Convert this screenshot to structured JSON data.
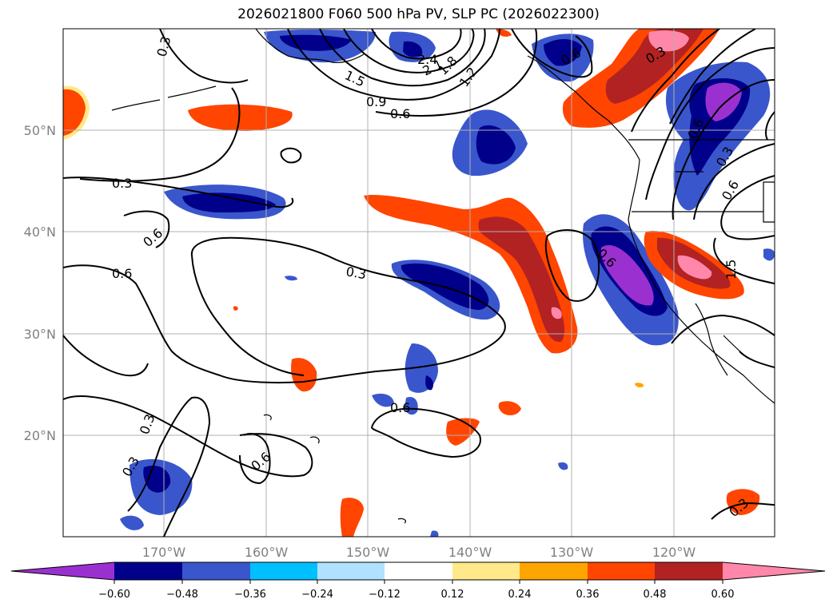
{
  "map": {
    "title": "2026021800 F060 500 hPa PV, SLP PC (2026022300)",
    "lat_ticks": [
      "20°N",
      "30°N",
      "40°N",
      "50°N"
    ],
    "lon_ticks": [
      "170°W",
      "160°W",
      "150°W",
      "140°W",
      "130°W",
      "120°W"
    ],
    "contour_labels": [
      "0.3",
      "0.3",
      "0.6",
      "0.6",
      "0.3",
      "0.6",
      "0.3",
      "0.6",
      "0.3",
      "1.5",
      "0.9",
      "0.6",
      "2.4",
      "2.1",
      "1.8",
      "1.2",
      "0.6",
      "0.3",
      "0.6",
      "0.6",
      "0.3",
      "0.6",
      "1.5",
      "0.3"
    ]
  },
  "colorbar": {
    "ticks": [
      "−0.60",
      "−0.48",
      "−0.36",
      "−0.24",
      "−0.12",
      "0.12",
      "0.24",
      "0.36",
      "0.48",
      "0.60"
    ],
    "colors": [
      "#9b30d0",
      "#00008b",
      "#3a56cc",
      "#00bfff",
      "#b0e2ff",
      "#ffffff",
      "#ffe98a",
      "#ffa500",
      "#ff4500",
      "#b22222",
      "#ff88aa"
    ]
  }
}
